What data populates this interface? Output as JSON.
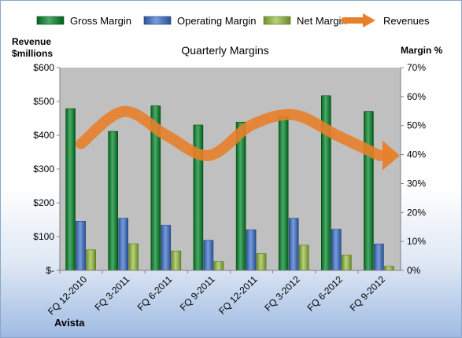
{
  "chart_data": {
    "type": "bar",
    "title": "Quarterly Margins",
    "brand": "Avista",
    "categories": [
      "FQ 12-2010",
      "FQ 3-2011",
      "FQ 6-2011",
      "FQ 9-2011",
      "FQ 12-2011",
      "FQ 3-2012",
      "FQ 6-2012",
      "FQ 9-2012"
    ],
    "series": [
      {
        "name": "Gross Margin",
        "axis": "right",
        "color": "#1e7d3a",
        "values": [
          55.8,
          48.0,
          56.8,
          50.2,
          51.2,
          53.2,
          60.3,
          54.9
        ]
      },
      {
        "name": "Operating Margin",
        "axis": "right",
        "color": "#4a6fb0",
        "values": [
          17.0,
          18.0,
          15.6,
          10.4,
          14.0,
          18.0,
          14.2,
          9.1
        ]
      },
      {
        "name": "Net Margin",
        "axis": "right",
        "color": "#8aa64a",
        "values": [
          7.1,
          9.2,
          6.7,
          3.1,
          5.8,
          8.7,
          5.3,
          1.4
        ]
      },
      {
        "name": "Revenues",
        "axis": "left",
        "type": "line",
        "color": "#e87f2a",
        "values": [
          375,
          470,
          400,
          340,
          430,
          460,
          400,
          340
        ]
      }
    ],
    "left_axis": {
      "label_line1": "Revenue",
      "label_line2": "$millions",
      "ticks": [
        "$-",
        "$100",
        "$200",
        "$300",
        "$400",
        "$500",
        "$600"
      ],
      "range": [
        0,
        600
      ]
    },
    "right_axis": {
      "label": "Margin %",
      "ticks": [
        "0%",
        "10%",
        "20%",
        "30%",
        "40%",
        "50%",
        "60%",
        "70%"
      ],
      "range": [
        0,
        70
      ]
    },
    "legend_position": "top",
    "grid": false
  }
}
